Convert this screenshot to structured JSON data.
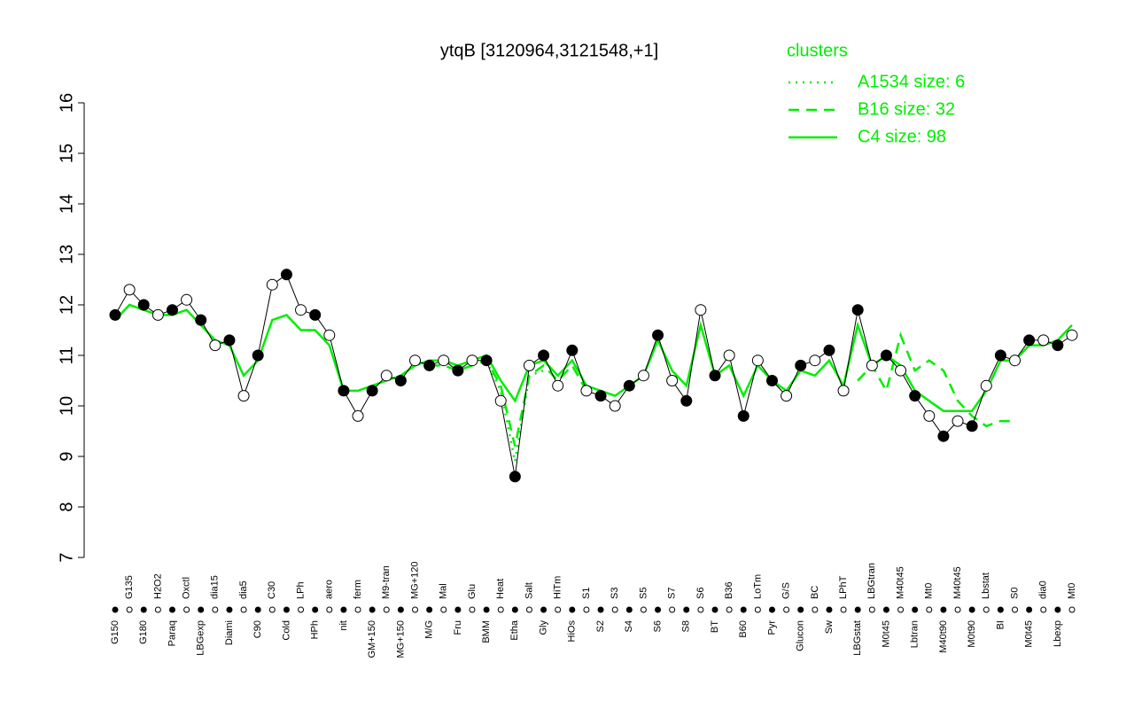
{
  "chart_data": {
    "type": "line",
    "title": "ytqB [3120964,3121548,+1]",
    "categories": [
      "G150",
      "G135",
      "G180",
      "H2O2",
      "Paraq",
      "Oxctl",
      "LBGexp",
      "dia15",
      "Diami",
      "dia5",
      "C90",
      "C30",
      "Cold",
      "LPh",
      "HPh",
      "aero",
      "nit",
      "ferm",
      "GM+150",
      "M9-tran",
      "MG+150",
      "MG+120",
      "M/G",
      "Mal",
      "Fru",
      "Glu",
      "BMM",
      "Heat",
      "Etha",
      "Salt",
      "Gly",
      "HiTm",
      "HiOs",
      "S1",
      "S2",
      "S3",
      "S4",
      "S5",
      "S6",
      "S7",
      "S8",
      "S6",
      "BT",
      "B36",
      "B60",
      "LoTm",
      "Pyr",
      "G/S",
      "Glucon",
      "BC",
      "Sw",
      "LPhT",
      "LBGstat",
      "LBGtran",
      "M0t45",
      "M40t45",
      "Lbtran",
      "Mt0",
      "M40t90",
      "M40t45",
      "M0t90",
      "Lbstat",
      "BI",
      "S0",
      "M0t45",
      "dia0",
      "Lbexp",
      "Mt0"
    ],
    "values": [
      11.8,
      12.3,
      12.0,
      11.8,
      11.9,
      12.1,
      11.7,
      11.2,
      11.3,
      10.2,
      11.0,
      12.4,
      12.6,
      11.9,
      11.8,
      11.4,
      10.3,
      9.8,
      10.3,
      10.6,
      10.5,
      10.9,
      10.8,
      10.9,
      10.7,
      10.9,
      10.9,
      10.1,
      8.6,
      10.8,
      11.0,
      10.4,
      11.1,
      10.3,
      10.2,
      10.0,
      10.4,
      10.6,
      11.4,
      10.5,
      10.1,
      11.9,
      10.6,
      11.0,
      9.8,
      10.9,
      10.5,
      10.2,
      10.8,
      10.9,
      11.1,
      10.3,
      11.9,
      10.8,
      11.0,
      10.7,
      10.2,
      9.8,
      9.4,
      9.7,
      9.6,
      10.4,
      11.0,
      10.9,
      11.3,
      11.3,
      11.2,
      11.4
    ],
    "legend_title": "clusters",
    "series": [
      {
        "name": "A1534 size: 6",
        "color": "#00ee00",
        "style": "dotted",
        "values": [
          null,
          null,
          null,
          null,
          null,
          null,
          null,
          null,
          null,
          null,
          null,
          null,
          null,
          null,
          null,
          null,
          null,
          null,
          null,
          null,
          null,
          null,
          null,
          null,
          null,
          null,
          10.9,
          10.3,
          8.9,
          10.6,
          10.7,
          null,
          null,
          null,
          null,
          null,
          null,
          null,
          null,
          null,
          null,
          null,
          null,
          null,
          null,
          null,
          null,
          null,
          null,
          null,
          null,
          null,
          null,
          null,
          null,
          null,
          null,
          null,
          null,
          null,
          null,
          null,
          null,
          null,
          null,
          null,
          null,
          null
        ]
      },
      {
        "name": "B16 size: 32",
        "color": "#00ee00",
        "style": "dashed",
        "values": [
          null,
          null,
          null,
          null,
          null,
          null,
          null,
          null,
          null,
          null,
          null,
          null,
          null,
          null,
          null,
          null,
          null,
          null,
          null,
          null,
          null,
          null,
          10.8,
          10.8,
          10.7,
          10.8,
          10.9,
          10.4,
          9.2,
          10.6,
          10.8,
          10.5,
          10.8,
          10.3,
          null,
          null,
          null,
          null,
          null,
          null,
          null,
          null,
          null,
          null,
          null,
          null,
          null,
          null,
          null,
          null,
          null,
          null,
          10.5,
          10.8,
          10.3,
          11.4,
          10.7,
          10.9,
          10.7,
          10.1,
          9.8,
          9.6,
          9.7,
          9.7,
          null,
          null,
          null,
          null
        ]
      },
      {
        "name": "C4 size: 98",
        "color": "#00ee00",
        "style": "solid",
        "values": [
          11.7,
          12.0,
          11.9,
          11.8,
          11.8,
          11.9,
          11.6,
          11.3,
          11.2,
          10.6,
          10.9,
          11.7,
          11.8,
          11.5,
          11.5,
          11.2,
          10.3,
          10.3,
          10.4,
          10.5,
          10.6,
          10.8,
          10.9,
          10.9,
          10.8,
          10.9,
          11.0,
          10.5,
          10.1,
          10.8,
          10.9,
          10.6,
          10.9,
          10.4,
          10.3,
          10.2,
          10.4,
          10.6,
          11.3,
          10.7,
          10.4,
          11.6,
          10.6,
          10.8,
          10.2,
          10.8,
          10.5,
          10.3,
          10.7,
          10.6,
          10.9,
          10.4,
          11.6,
          10.8,
          11.0,
          10.8,
          10.3,
          10.1,
          9.9,
          9.9,
          9.9,
          10.3,
          10.9,
          10.9,
          11.2,
          11.2,
          11.3,
          11.6
        ]
      }
    ],
    "ylim": [
      7,
      16
    ],
    "yticks": [
      7,
      8,
      9,
      10,
      11,
      12,
      13,
      14,
      15,
      16
    ]
  }
}
